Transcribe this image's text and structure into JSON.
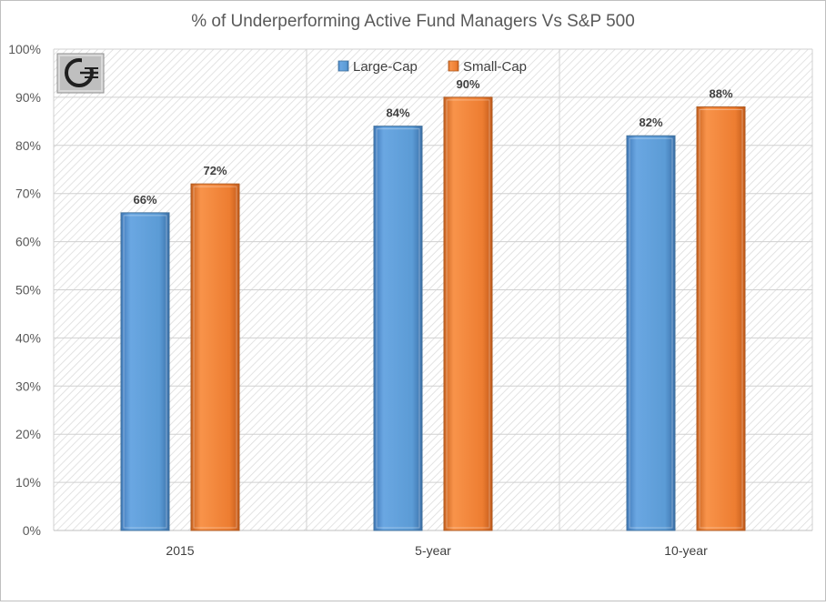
{
  "chart_data": {
    "type": "bar",
    "title": "% of Underperforming Active Fund Managers Vs S&P 500",
    "xlabel": "",
    "ylabel": "",
    "categories": [
      "2015",
      "5-year",
      "10-year"
    ],
    "series": [
      {
        "name": "Large-Cap",
        "values": [
          66,
          84,
          82
        ],
        "labels": [
          "66%",
          "84%",
          "82%"
        ],
        "color": "#5b9bd5"
      },
      {
        "name": "Small-Cap",
        "values": [
          72,
          90,
          88
        ],
        "labels": [
          "72%",
          "90%",
          "88%"
        ],
        "color": "#ed7d31"
      }
    ],
    "ylim": [
      0,
      100
    ],
    "yticks": [
      0,
      10,
      20,
      30,
      40,
      50,
      60,
      70,
      80,
      90,
      100
    ],
    "ytick_labels": [
      "0%",
      "10%",
      "20%",
      "30%",
      "40%",
      "50%",
      "60%",
      "70%",
      "80%",
      "90%",
      "100%"
    ],
    "grid": true,
    "legend_position": "top-center"
  },
  "logo": {
    "icon": "g-monogram-logo-icon"
  }
}
